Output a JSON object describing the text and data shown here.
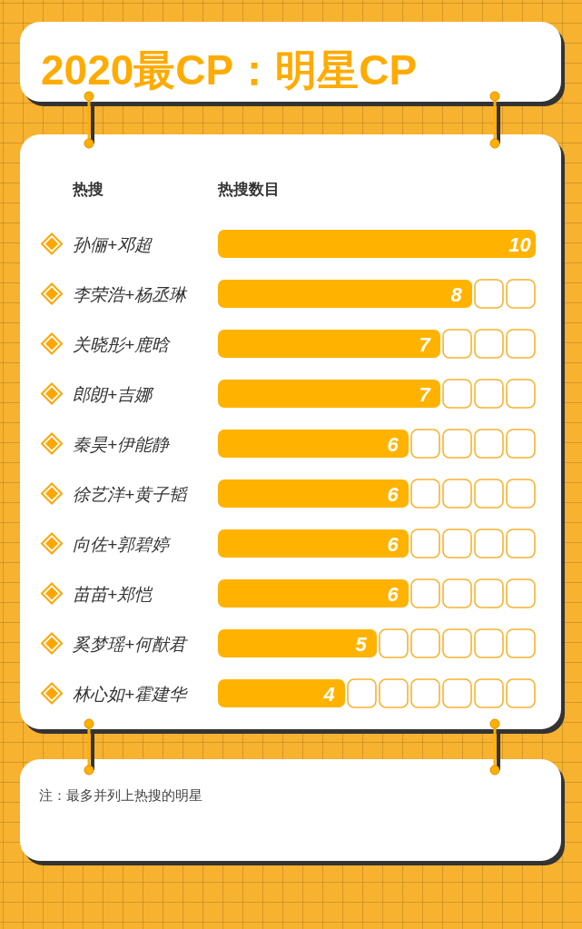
{
  "chart_data": {
    "type": "bar",
    "orientation": "horizontal",
    "title": "2020最CP：明星CP",
    "ylabel": "热搜",
    "xlabel": "热搜数目",
    "categories": [
      "孙俪+邓超",
      "李荣浩+杨丞琳",
      "关晓彤+鹿晗",
      "郎朗+吉娜",
      "秦昊+伊能静",
      "徐艺洋+黄子韬",
      "向佐+郭碧婷",
      "苗苗+郑恺",
      "奚梦瑶+何猷君",
      "林心如+霍建华"
    ],
    "values": [
      10,
      8,
      7,
      7,
      6,
      6,
      6,
      6,
      5,
      4
    ],
    "color": "#ffb300",
    "xlim": [
      0,
      10
    ],
    "tick_labels": "y",
    "data_labels": true,
    "annotations": [
      "注：最多并列上热搜的明星"
    ]
  }
}
